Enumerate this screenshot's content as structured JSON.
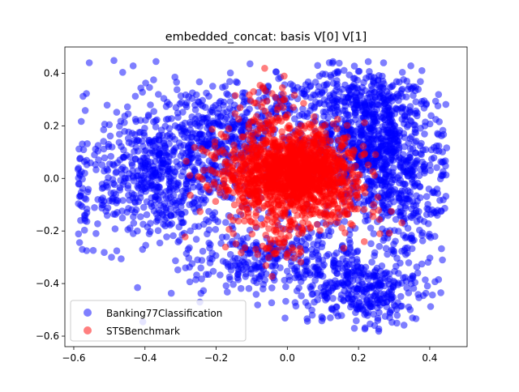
{
  "chart_data": {
    "type": "scatter",
    "title": "embedded_concat: basis V[0] V[1]",
    "xlabel": "",
    "ylabel": "",
    "xlim": [
      -0.625,
      0.505
    ],
    "ylim": [
      -0.64,
      0.5
    ],
    "xticks": [
      -0.6,
      -0.4,
      -0.2,
      0.0,
      0.2,
      0.4
    ],
    "xtick_labels": [
      "−0.6",
      "−0.4",
      "−0.2",
      "0.0",
      "0.2",
      "0.4"
    ],
    "yticks": [
      -0.6,
      -0.4,
      -0.2,
      0.0,
      0.2,
      0.4
    ],
    "ytick_labels": [
      "−0.6",
      "−0.4",
      "−0.2",
      "0.0",
      "0.2",
      "0.4"
    ],
    "grid": false,
    "legend_position": "lower-left",
    "series": [
      {
        "name": "Banking77Classification",
        "color": "#0000ff",
        "alpha": 0.5,
        "clusters": [
          {
            "cx": -0.36,
            "cy": 0.02,
            "sx": 0.13,
            "sy": 0.14,
            "n": 700
          },
          {
            "cx": -0.18,
            "cy": 0.18,
            "sx": 0.1,
            "sy": 0.09,
            "n": 280
          },
          {
            "cx": 0.24,
            "cy": 0.14,
            "sx": 0.09,
            "sy": 0.1,
            "n": 650
          },
          {
            "cx": 0.22,
            "cy": 0.32,
            "sx": 0.08,
            "sy": 0.05,
            "n": 180
          },
          {
            "cx": 0.31,
            "cy": -0.08,
            "sx": 0.08,
            "sy": 0.12,
            "n": 280
          },
          {
            "cx": 0.22,
            "cy": -0.42,
            "sx": 0.08,
            "sy": 0.07,
            "n": 330
          },
          {
            "cx": -0.12,
            "cy": -0.32,
            "sx": 0.09,
            "sy": 0.06,
            "n": 160
          },
          {
            "cx": 0.06,
            "cy": -0.3,
            "sx": 0.06,
            "sy": 0.08,
            "n": 140
          },
          {
            "cx": 0.0,
            "cy": 0.3,
            "sx": 0.12,
            "sy": 0.06,
            "n": 120
          }
        ]
      },
      {
        "name": "STSBenchmark",
        "color": "#ff0000",
        "alpha": 0.5,
        "clusters": [
          {
            "cx": -0.01,
            "cy": 0.01,
            "sx": 0.09,
            "sy": 0.09,
            "n": 1100
          },
          {
            "cx": 0.05,
            "cy": 0.04,
            "sx": 0.07,
            "sy": 0.06,
            "n": 500
          },
          {
            "cx": -0.05,
            "cy": 0.27,
            "sx": 0.04,
            "sy": 0.06,
            "n": 45
          },
          {
            "cx": 0.17,
            "cy": -0.12,
            "sx": 0.06,
            "sy": 0.06,
            "n": 60
          },
          {
            "cx": -0.02,
            "cy": -0.26,
            "sx": 0.05,
            "sy": 0.04,
            "n": 40
          }
        ]
      }
    ]
  }
}
